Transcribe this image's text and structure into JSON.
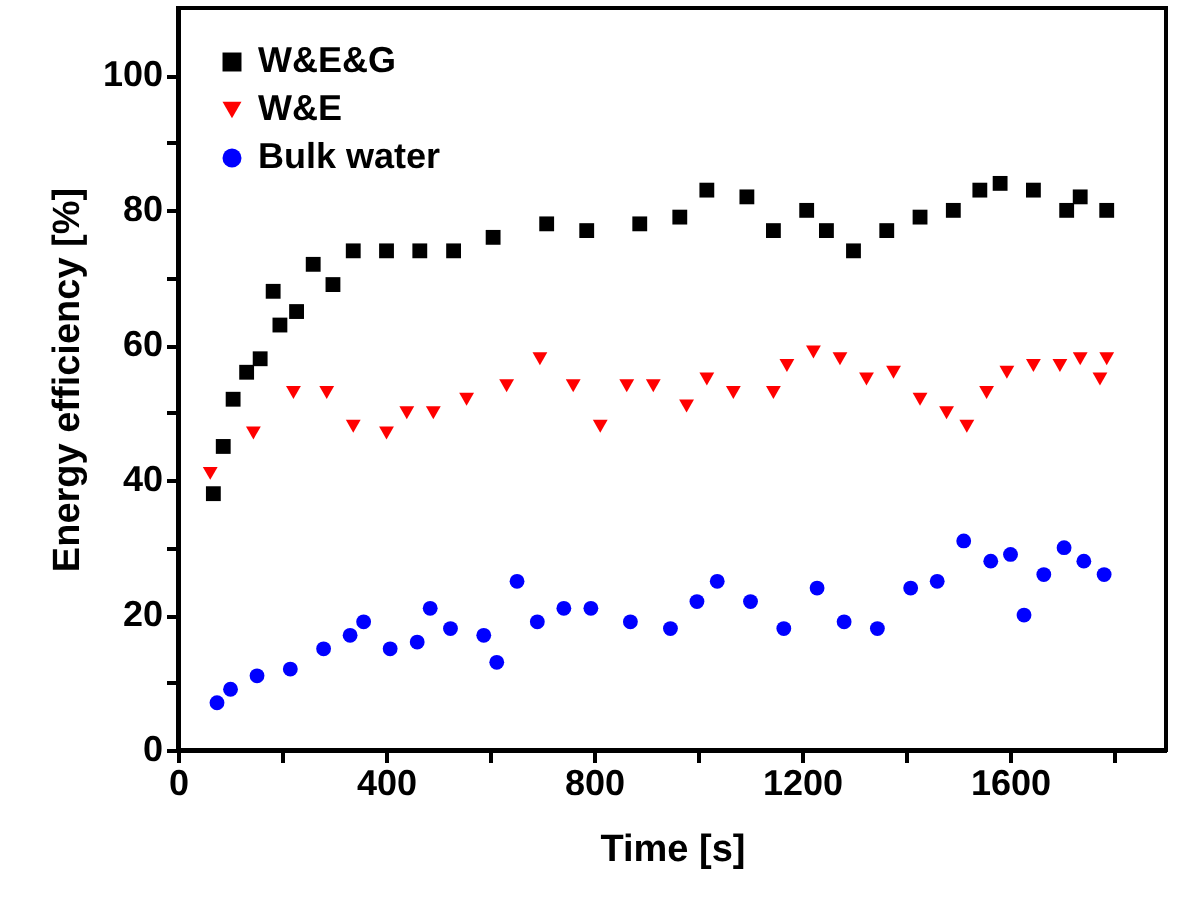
{
  "chart_data": {
    "type": "scatter",
    "xlabel": "Time [s]",
    "ylabel": "Energy efficiency [%]",
    "xlim": [
      0,
      1900
    ],
    "ylim": [
      0,
      110
    ],
    "xticks": [
      0,
      {
        "value": 200,
        "label": null
      },
      400,
      {
        "value": 600,
        "label": null
      },
      800,
      {
        "value": 1000,
        "label": null
      },
      1200,
      {
        "value": 1400,
        "label": null
      },
      1600,
      {
        "value": 1800,
        "label": null
      }
    ],
    "yticks": [
      0,
      {
        "value": 10,
        "label": null
      },
      20,
      {
        "value": 30,
        "label": null
      },
      40,
      {
        "value": 50,
        "label": null
      },
      60,
      {
        "value": 70,
        "label": null
      },
      80,
      {
        "value": 90,
        "label": null
      },
      100
    ],
    "grid": false,
    "legend": "top left",
    "series": [
      {
        "name": "W&E&G",
        "color": "#000000",
        "marker": "square",
        "x": [
          68,
          87,
          106,
          132,
          158,
          183,
          196,
          228,
          260,
          298,
          337,
          401,
          465,
          530,
          606,
          709,
          786,
          888,
          965,
          1017,
          1094,
          1145,
          1209,
          1247,
          1299,
          1363,
          1427,
          1491,
          1542,
          1581,
          1645,
          1709,
          1735,
          1786
        ],
        "values": [
          38,
          45,
          52,
          56,
          58,
          68,
          63,
          65,
          72,
          69,
          74,
          74,
          74,
          74,
          76,
          78,
          77,
          78,
          79,
          83,
          82,
          77,
          80,
          77,
          74,
          77,
          79,
          80,
          83,
          84,
          83,
          80,
          82,
          80
        ]
      },
      {
        "name": "W&E",
        "color": "#ff0000",
        "marker": "triangle",
        "x": [
          62,
          145,
          222,
          286,
          337,
          401,
          440,
          491,
          555,
          632,
          696,
          760,
          812,
          863,
          914,
          978,
          1017,
          1068,
          1145,
          1171,
          1222,
          1273,
          1324,
          1376,
          1427,
          1478,
          1517,
          1555,
          1594,
          1645,
          1696,
          1735,
          1773,
          1786
        ],
        "values": [
          41,
          47,
          53,
          53,
          48,
          47,
          50,
          50,
          52,
          54,
          58,
          54,
          48,
          54,
          54,
          51,
          55,
          53,
          53,
          57,
          59,
          58,
          55,
          56,
          52,
          50,
          48,
          53,
          56,
          57,
          57,
          58,
          55,
          58
        ]
      },
      {
        "name": "Bulk water",
        "color": "#0000ff",
        "marker": "circle",
        "x": [
          75,
          101,
          152,
          216,
          280,
          331,
          357,
          408,
          460,
          485,
          524,
          588,
          613,
          652,
          691,
          742,
          794,
          870,
          947,
          998,
          1037,
          1101,
          1165,
          1229,
          1281,
          1345,
          1409,
          1460,
          1511,
          1563,
          1601,
          1627,
          1665,
          1704,
          1742,
          1781
        ],
        "values": [
          7,
          9,
          11,
          12,
          15,
          17,
          19,
          15,
          16,
          21,
          18,
          17,
          13,
          25,
          19,
          21,
          21,
          19,
          18,
          22,
          25,
          22,
          18,
          24,
          19,
          18,
          24,
          25,
          31,
          28,
          29,
          20,
          26,
          30,
          28,
          26
        ]
      }
    ]
  }
}
